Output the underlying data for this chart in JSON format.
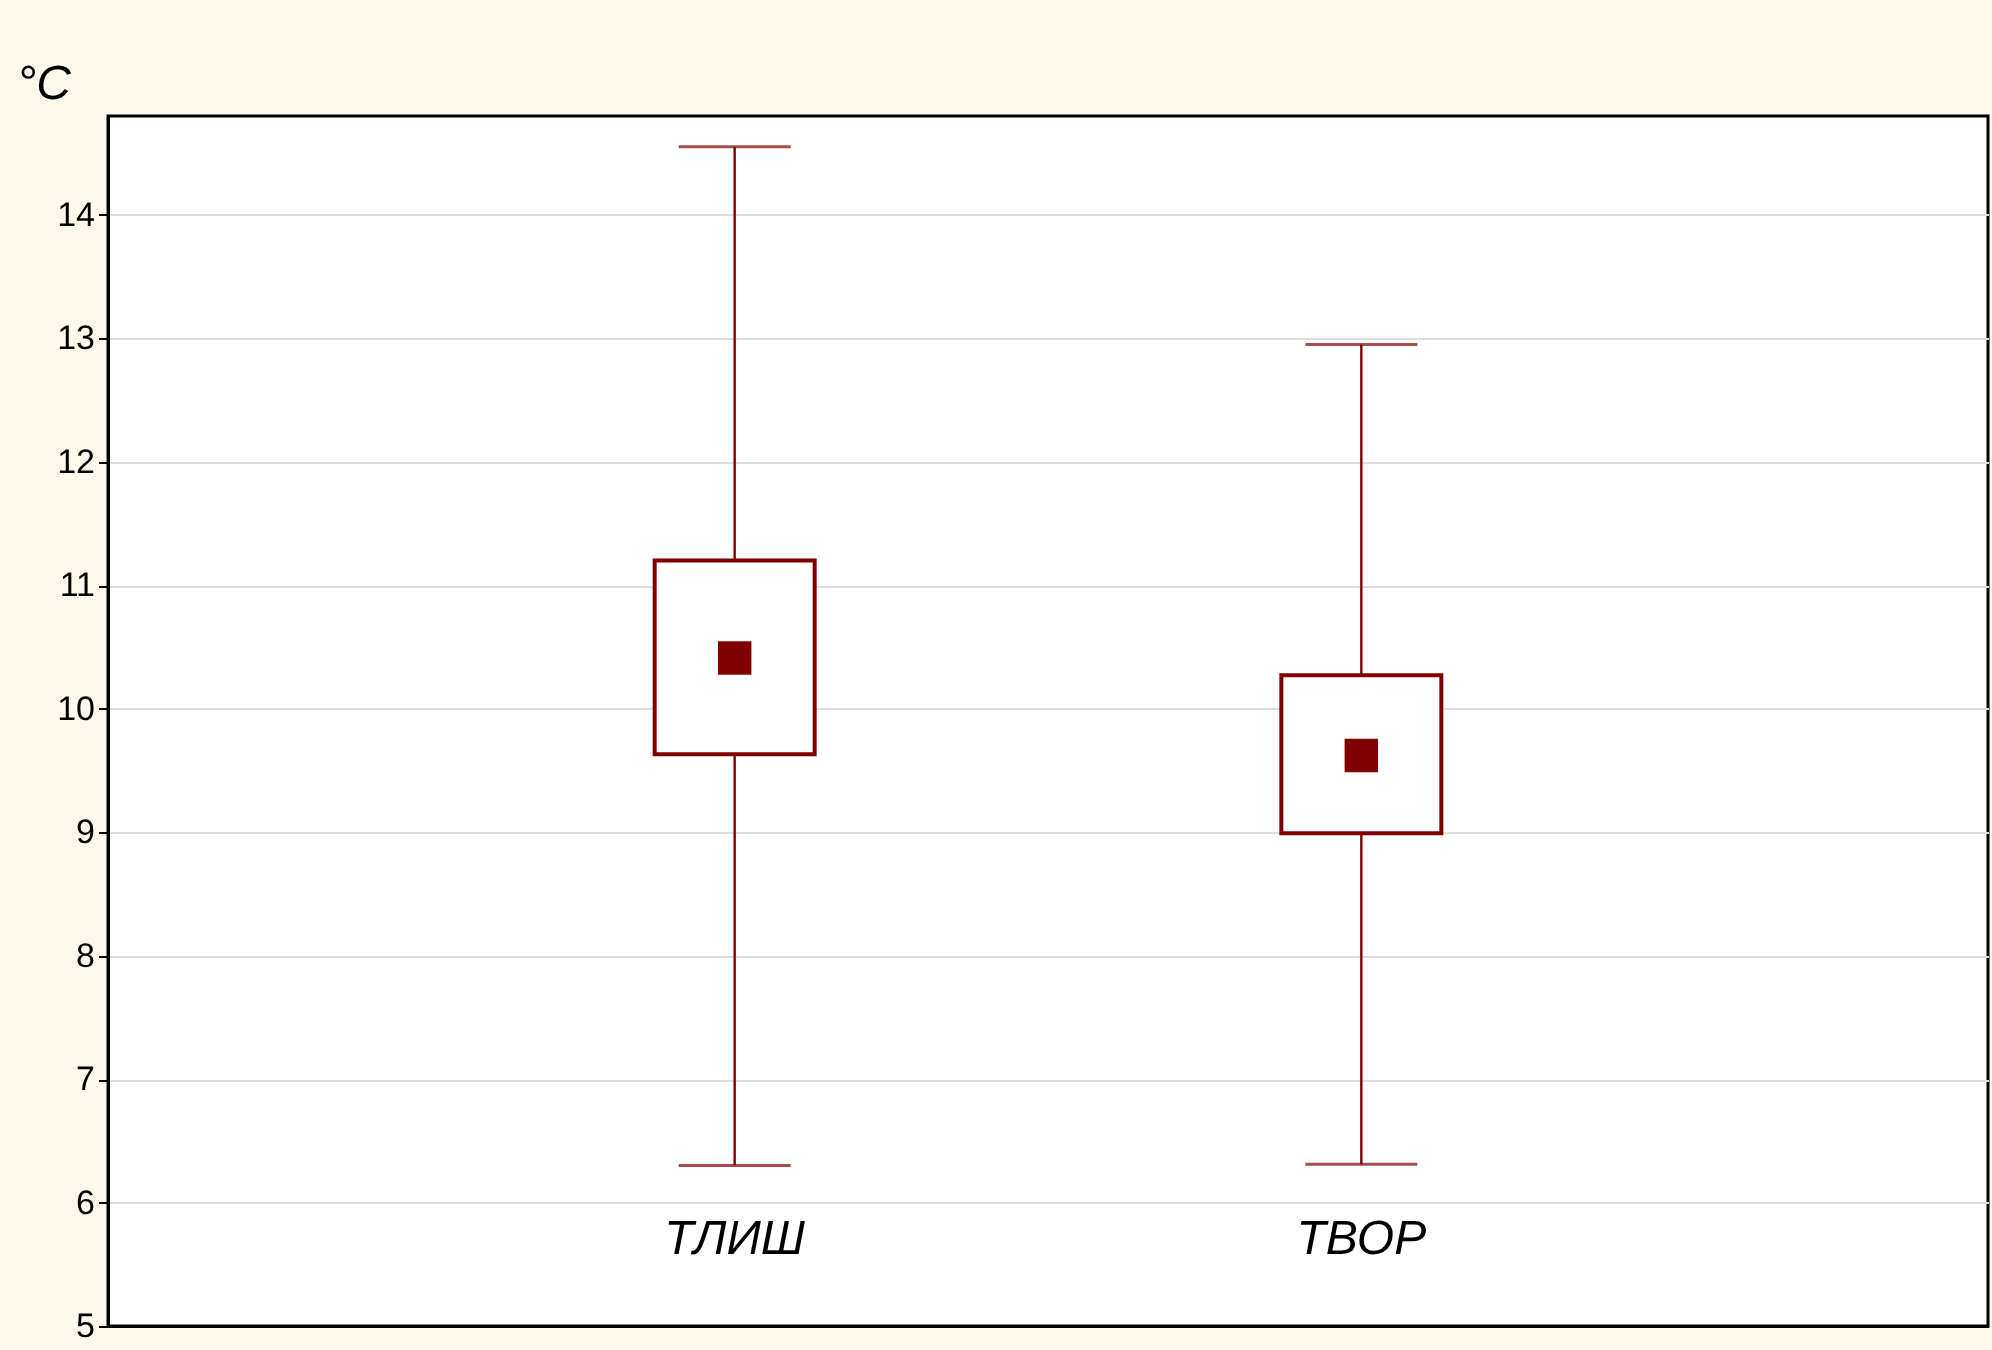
{
  "chart_data": {
    "type": "box",
    "ylabel": "°C",
    "categories": [
      "TЛИШ",
      "TВОР"
    ],
    "boxes": [
      {
        "low": 6.3,
        "q1": 9.63,
        "median": null,
        "q3": 11.2,
        "high": 14.55,
        "mean": 10.41
      },
      {
        "low": 6.31,
        "q1": 8.99,
        "median": null,
        "q3": 10.27,
        "high": 12.95,
        "mean": 9.62
      }
    ],
    "color": "#800000",
    "marker": "square",
    "ylim": [
      5,
      14.8
    ],
    "yticks": [
      5,
      6,
      7,
      8,
      9,
      10,
      11,
      12,
      13,
      14
    ],
    "grid": "y"
  }
}
